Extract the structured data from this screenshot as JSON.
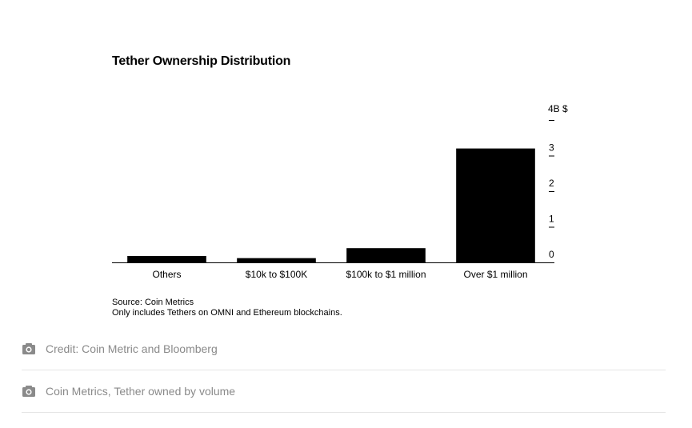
{
  "chart": {
    "title": "Tether Ownership Distribution",
    "source_line1": "Source: Coin Metrics",
    "source_line2": "Only includes Tethers on OMNI and Ethereum blockchains."
  },
  "chart_data": {
    "type": "bar",
    "title": "Tether Ownership Distribution",
    "categories": [
      "Others",
      "$10k to $100K",
      "$100k to $1 million",
      "Over $1 million"
    ],
    "values": [
      0.18,
      0.12,
      0.4,
      3.2
    ],
    "y_unit_label": "4B $",
    "y_ticks": [
      "0",
      "1",
      "2",
      "3"
    ],
    "ylim": [
      0,
      4
    ],
    "grid": false,
    "legend": "none",
    "bar_color": "#000000"
  },
  "credits": [
    {
      "icon": "camera-icon",
      "text": "Credit: Coin Metric and Bloomberg"
    },
    {
      "icon": "camera-icon",
      "text": "Coin Metrics, Tether owned by volume"
    }
  ],
  "colors": {
    "bar": "#000000",
    "caption": "#8a8a8a",
    "divider": "#e5e5e5"
  }
}
